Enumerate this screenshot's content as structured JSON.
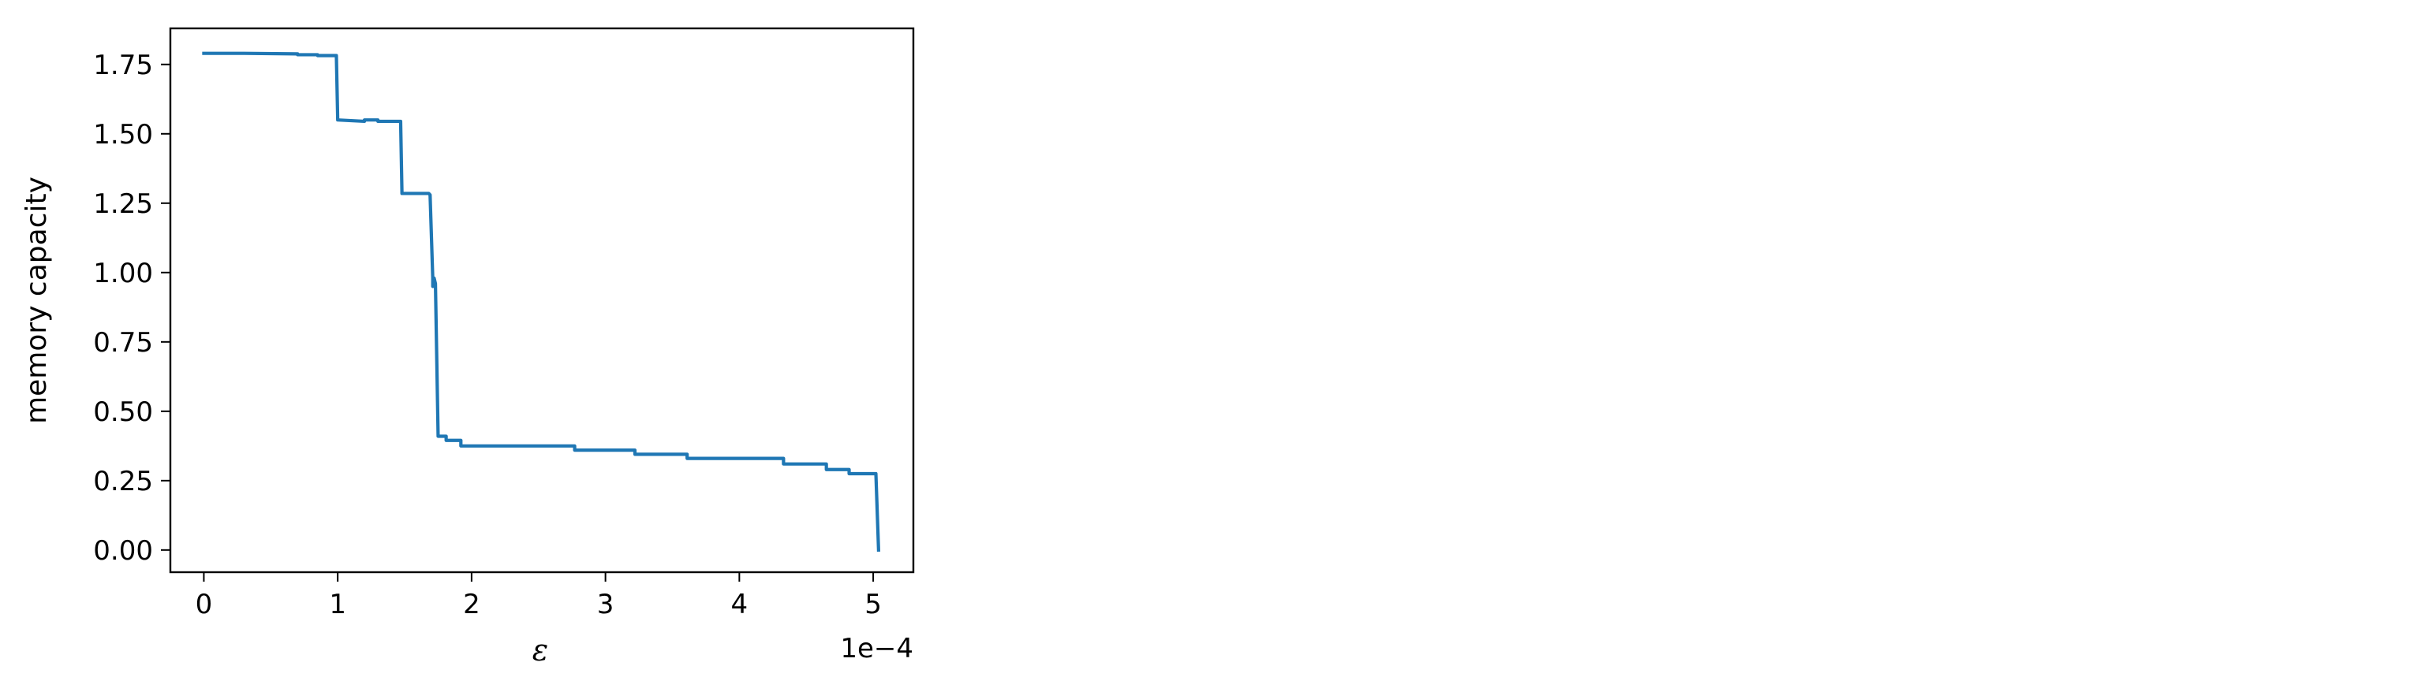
{
  "chart_data": {
    "type": "line",
    "title": "",
    "xlabel": "ε",
    "ylabel": "memory capacity",
    "x_offset_label": "1e−4",
    "xlim": [
      -0.25,
      5.3
    ],
    "ylim": [
      -0.08,
      1.88
    ],
    "grid": false,
    "xticks": [
      0,
      1,
      2,
      3,
      4,
      5
    ],
    "xtick_labels": [
      "0",
      "1",
      "2",
      "3",
      "4",
      "5"
    ],
    "yticks": [
      0.0,
      0.25,
      0.5,
      0.75,
      1.0,
      1.25,
      1.5,
      1.75
    ],
    "ytick_labels": [
      "0.00",
      "0.25",
      "0.50",
      "0.75",
      "1.00",
      "1.25",
      "1.50",
      "1.75"
    ],
    "series": [
      {
        "color": "#1f77b4",
        "x": [
          0.0,
          0.3,
          0.7,
          0.7,
          0.85,
          0.85,
          0.99,
          1.0,
          1.2,
          1.2,
          1.3,
          1.3,
          1.47,
          1.48,
          1.68,
          1.69,
          1.71,
          1.71,
          1.72,
          1.73,
          1.75,
          1.81,
          1.81,
          1.92,
          1.92,
          2.77,
          2.77,
          3.22,
          3.22,
          3.61,
          3.61,
          4.33,
          4.33,
          4.65,
          4.65,
          4.82,
          4.82,
          5.02,
          5.04
        ],
        "y": [
          1.79,
          1.79,
          1.788,
          1.785,
          1.785,
          1.782,
          1.782,
          1.55,
          1.545,
          1.55,
          1.55,
          1.545,
          1.545,
          1.285,
          1.285,
          1.28,
          0.98,
          0.95,
          0.98,
          0.96,
          0.41,
          0.41,
          0.395,
          0.395,
          0.375,
          0.375,
          0.36,
          0.36,
          0.345,
          0.345,
          0.33,
          0.33,
          0.31,
          0.31,
          0.29,
          0.29,
          0.275,
          0.275,
          0.0
        ]
      }
    ]
  }
}
